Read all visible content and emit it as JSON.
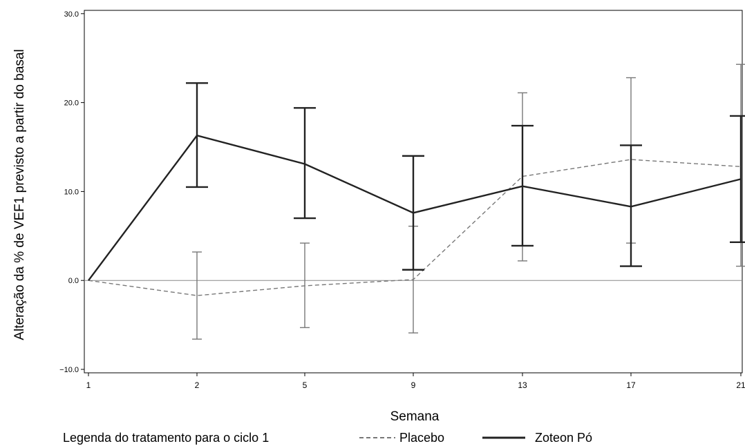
{
  "chart_data": {
    "type": "line",
    "title": "",
    "xlabel": "Semana",
    "ylabel": "Alteração da % de VEF1 previsto a partir do basal",
    "categories": [
      "1",
      "2",
      "5",
      "9",
      "13",
      "17",
      "21"
    ],
    "ylim": [
      -10,
      30
    ],
    "yticks": [
      -10,
      0,
      10,
      20,
      30
    ],
    "ytick_labels": [
      "−10.0",
      "0.0",
      "10.0",
      "20.0",
      "30.0"
    ],
    "reference_line": 0,
    "grid": false,
    "legend": {
      "title": "Legenda do tratamento para o ciclo 1",
      "placement": "bottom"
    },
    "series": [
      {
        "name": "Placebo",
        "style": "dashed",
        "color": "#777777",
        "values": [
          0.0,
          -1.7,
          -0.6,
          0.1,
          11.7,
          13.6,
          12.8
        ],
        "lower": [
          null,
          -6.6,
          -5.3,
          -5.9,
          2.2,
          4.2,
          1.6
        ],
        "upper": [
          null,
          3.2,
          4.2,
          6.1,
          21.1,
          22.8,
          24.3
        ]
      },
      {
        "name": "Zoteon Pó",
        "style": "solid",
        "color": "#222222",
        "values": [
          0.0,
          16.3,
          13.1,
          7.6,
          10.6,
          8.3,
          11.4
        ],
        "lower": [
          null,
          10.5,
          7.0,
          1.2,
          3.9,
          1.6,
          4.3
        ],
        "upper": [
          null,
          22.2,
          19.4,
          14.0,
          17.4,
          15.2,
          18.5
        ]
      }
    ]
  }
}
